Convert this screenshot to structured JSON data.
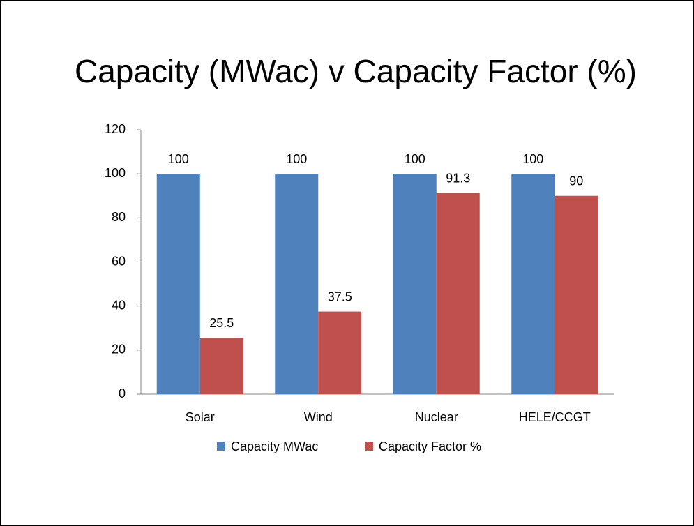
{
  "chart_data": {
    "type": "bar",
    "title": "Capacity (MWac) v Capacity Factor (%)",
    "categories": [
      "Solar",
      "Wind",
      "Nuclear",
      "HELE/CCGT"
    ],
    "series": [
      {
        "name": "Capacity MWac",
        "color": "#4f81bd",
        "values": [
          100,
          100,
          100,
          100
        ]
      },
      {
        "name": "Capacity Factor %",
        "color": "#c0504d",
        "values": [
          25.5,
          37.5,
          91.3,
          90
        ]
      }
    ],
    "ylim": [
      0,
      120
    ],
    "yticks": [
      0,
      20,
      40,
      60,
      80,
      100,
      120
    ],
    "grid": false,
    "legend": "bottom"
  }
}
